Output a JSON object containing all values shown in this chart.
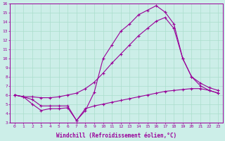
{
  "xlabel": "Windchill (Refroidissement éolien,°C)",
  "bg_color": "#cceee8",
  "grid_color": "#aaddcc",
  "line_color": "#990099",
  "x_min": 0,
  "x_max": 23,
  "y_min": 3,
  "y_max": 16,
  "line1_x": [
    0,
    1,
    2,
    3,
    4,
    5,
    6,
    7,
    8,
    9,
    10,
    11,
    12,
    13,
    14,
    15,
    16,
    17,
    18,
    19,
    20,
    21,
    22,
    23
  ],
  "line1_y": [
    6.0,
    5.8,
    5.5,
    4.8,
    4.8,
    4.8,
    4.8,
    3.2,
    4.5,
    4.8,
    5.0,
    5.2,
    5.4,
    5.6,
    5.8,
    6.0,
    6.2,
    6.4,
    6.5,
    6.6,
    6.7,
    6.7,
    6.5,
    6.2
  ],
  "line2_x": [
    0,
    1,
    2,
    3,
    4,
    5,
    6,
    7,
    8,
    9,
    10,
    11,
    12,
    13,
    14,
    15,
    16,
    17,
    18,
    19,
    20,
    21,
    22,
    23
  ],
  "line2_y": [
    6.0,
    5.8,
    5.0,
    4.3,
    4.5,
    4.5,
    4.6,
    3.2,
    4.3,
    6.3,
    10.0,
    11.5,
    13.0,
    13.8,
    14.8,
    15.3,
    15.8,
    15.1,
    13.8,
    10.0,
    8.0,
    7.0,
    6.5,
    6.2
  ],
  "line3_x": [
    0,
    1,
    2,
    3,
    4,
    5,
    6,
    7,
    8,
    9,
    10,
    11,
    12,
    13,
    14,
    15,
    16,
    17,
    18,
    19,
    20,
    21,
    22,
    23
  ],
  "line3_y": [
    6.0,
    5.8,
    5.8,
    5.7,
    5.7,
    5.8,
    6.0,
    6.2,
    6.7,
    7.4,
    8.4,
    9.5,
    10.5,
    11.5,
    12.5,
    13.3,
    14.1,
    14.5,
    13.3,
    10.0,
    8.0,
    7.3,
    6.8,
    6.5
  ]
}
